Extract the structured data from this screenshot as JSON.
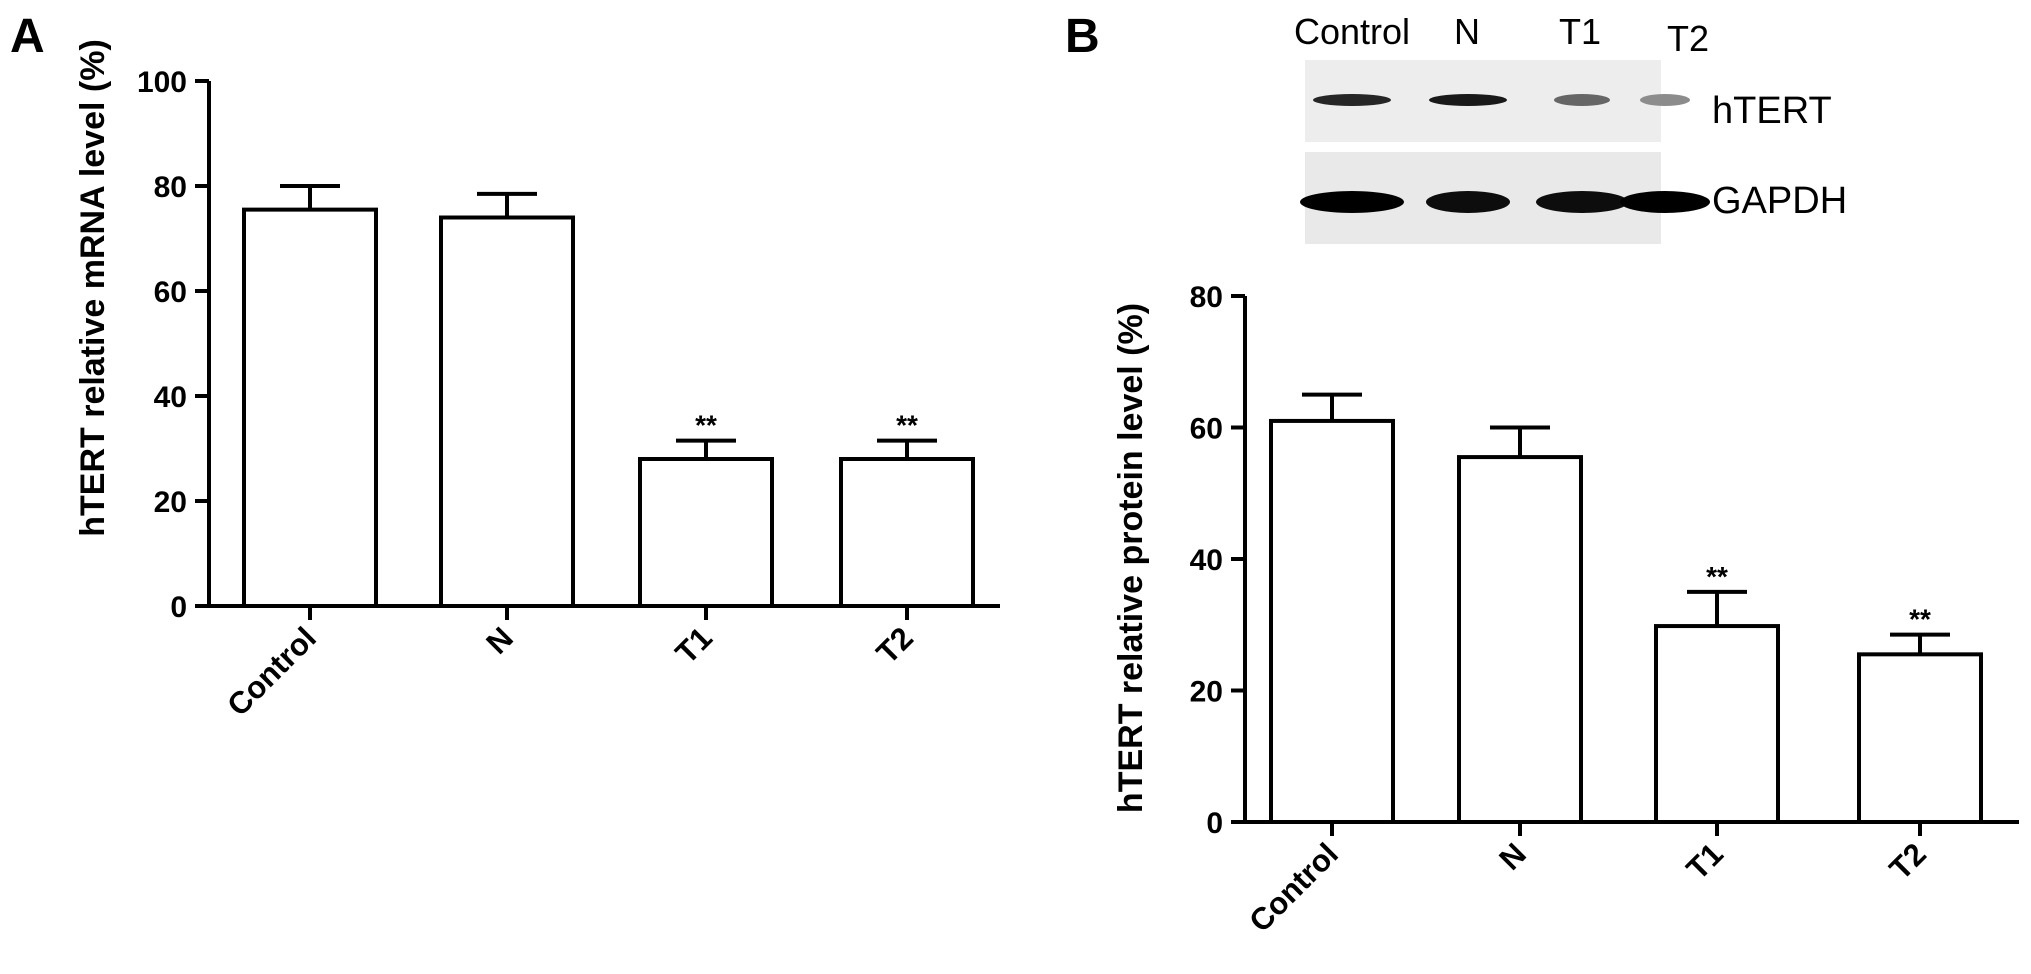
{
  "panels": [
    {
      "letter": "A"
    },
    {
      "letter": "B"
    }
  ],
  "blot": {
    "lanes": [
      "Control",
      "N",
      "T1",
      "T2"
    ],
    "proteins": [
      "hTERT",
      "GAPDH"
    ],
    "band_intensity": {
      "hTERT": [
        0.85,
        0.9,
        0.6,
        0.45
      ],
      "GAPDH": [
        1.0,
        0.95,
        0.95,
        1.0
      ]
    }
  },
  "chart_data": [
    {
      "type": "bar",
      "panel": "A",
      "categories": [
        "Control",
        "N",
        "T1",
        "T2"
      ],
      "values": [
        75.5,
        74,
        28,
        28
      ],
      "errors": [
        4.5,
        4.5,
        3.5,
        3.5
      ],
      "significance": [
        "",
        "",
        "**",
        "**"
      ],
      "ylabel": "hTERT relative mRNA level (%)",
      "ylim": [
        0,
        100
      ],
      "yticks": [
        0,
        20,
        40,
        60,
        80,
        100
      ]
    },
    {
      "type": "bar",
      "panel": "B",
      "categories": [
        "Control",
        "N",
        "T1",
        "T2"
      ],
      "values": [
        61,
        55.5,
        29.8,
        25.5
      ],
      "errors": [
        4,
        4.5,
        5.2,
        3
      ],
      "significance": [
        "",
        "",
        "**",
        "**"
      ],
      "ylabel": "hTERT relative protein level (%)",
      "ylim": [
        0,
        80
      ],
      "yticks": [
        0,
        20,
        40,
        60,
        80
      ]
    }
  ]
}
